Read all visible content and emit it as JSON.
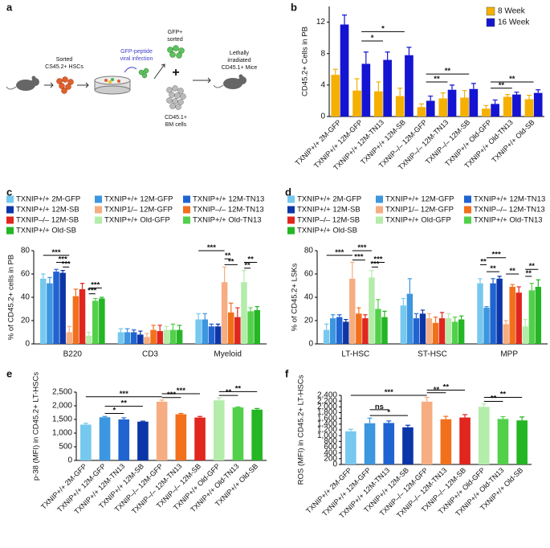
{
  "diagram": {
    "label": "a",
    "sorted": "Sorted",
    "hscs": "CS45.2+ HSCs",
    "peptide": "GFP-peptide",
    "infection": "viral infection",
    "gfp": "GFP+",
    "gfp_sorted": "sorted",
    "cd451": "CD45.1+",
    "bm": "BM cells",
    "lethally": "Lethally",
    "irradiated": "irradiated",
    "mice": "CD45.1+ Mice"
  },
  "chart_data": [
    {
      "panel": "b",
      "type": "bar",
      "ylabel": "CD45.2+ Cells in PB",
      "categories": [
        "TXNIP+/+ 2M-GFP",
        "TXNIP+/+ 12M-GFP",
        "TXNIP+/+ 12M-TN13",
        "TXNIP+/+ 12M-SB",
        "TXNIP–/– 12M-GFP",
        "TXNIP–/– 12M-TN13",
        "TXNIP–/– 12M-SB",
        "TXNIP+/+ Old-GFP",
        "TXNIP+/+ Old-TN13",
        "TXNIP+/+ Old-SB"
      ],
      "series": [
        {
          "name": "8 Week",
          "color": "#f5b000",
          "values": [
            5.3,
            3.3,
            3.2,
            2.6,
            1.2,
            2.3,
            2.4,
            1.0,
            2.5,
            2.2
          ],
          "errors": [
            0.7,
            1.5,
            1.2,
            1.0,
            0.4,
            0.7,
            0.9,
            0.4,
            0.3,
            0.5
          ]
        },
        {
          "name": "16 Week",
          "color": "#1414d2",
          "values": [
            11.7,
            6.7,
            7.2,
            7.8,
            2.0,
            3.4,
            3.5,
            1.6,
            2.8,
            3.0
          ],
          "errors": [
            1.2,
            1.5,
            1.0,
            1.0,
            0.6,
            0.6,
            0.7,
            0.5,
            0.3,
            0.4
          ]
        }
      ],
      "ylim": [
        0,
        14
      ],
      "yticks": [
        0,
        4,
        8,
        12
      ],
      "legend": "upper right",
      "annotations": [
        "*",
        "*",
        "**",
        "**",
        "**",
        "**"
      ]
    },
    {
      "panel": "c",
      "type": "bar",
      "ylabel": "% of CD45.2+ cells in PB",
      "categories": [
        "B220",
        "CD3",
        "Myeloid"
      ],
      "series": [
        {
          "name": "TXNIP+/+ 2M-GFP",
          "color": "#76c8ee",
          "values": [
            56,
            10,
            21
          ],
          "errors": [
            4,
            3,
            5
          ]
        },
        {
          "name": "TXNIP+/+ 12M-GFP",
          "color": "#3c96e0",
          "values": [
            52,
            10,
            21
          ],
          "errors": [
            5,
            3,
            5
          ]
        },
        {
          "name": "TXNIP+/+ 12M-TN13",
          "color": "#2064d2",
          "values": [
            62,
            10,
            15
          ],
          "errors": [
            2,
            2,
            2
          ]
        },
        {
          "name": "TXNIP+/+ 12M-SB",
          "color": "#0c36a8",
          "values": [
            61,
            8,
            15
          ],
          "errors": [
            2,
            3,
            2
          ]
        },
        {
          "name": "TXNIP1/– 12M-GFP",
          "color": "#f6ad82",
          "values": [
            10,
            6,
            53
          ],
          "errors": [
            5,
            3,
            13
          ]
        },
        {
          "name": "TXNIP–/– 12M-TN13",
          "color": "#f2701c",
          "values": [
            41,
            12,
            27
          ],
          "errors": [
            6,
            4,
            8
          ]
        },
        {
          "name": "TXNIP–/– 12M-SB",
          "color": "#e0261e",
          "values": [
            47,
            11,
            23
          ],
          "errors": [
            5,
            5,
            8
          ]
        },
        {
          "name": "TXNIP+/+ Old-GFP",
          "color": "#b4ecaa",
          "values": [
            7,
            12,
            53
          ],
          "errors": [
            3,
            3,
            10
          ]
        },
        {
          "name": "TXNIP+/+ Old-TN13",
          "color": "#52d04a",
          "values": [
            37,
            12,
            28
          ],
          "errors": [
            2,
            5,
            3
          ]
        },
        {
          "name": "TXNIP+/+ Old-SB",
          "color": "#24b624",
          "values": [
            39,
            12,
            29
          ],
          "errors": [
            1,
            4,
            3
          ]
        }
      ],
      "ylim": [
        0,
        80
      ],
      "yticks": [
        0,
        20,
        40,
        60,
        80
      ],
      "legend": "top",
      "annotations": [
        "***",
        "***",
        "***",
        "***",
        "***",
        "***",
        "**",
        "**",
        "**",
        "**"
      ]
    },
    {
      "panel": "d",
      "type": "bar",
      "ylabel": "% of CD45.2+ LSKs",
      "categories": [
        "LT-HSC",
        "ST-HSC",
        "MPP"
      ],
      "series": [
        {
          "name": "TXNIP+/+ 2M-GFP",
          "color": "#76c8ee",
          "values": [
            12,
            33,
            52
          ],
          "errors": [
            5,
            6,
            4
          ]
        },
        {
          "name": "TXNIP+/+ 12M-GFP",
          "color": "#3c96e0",
          "values": [
            22,
            43,
            31
          ],
          "errors": [
            3,
            13,
            1
          ]
        },
        {
          "name": "TXNIP+/+ 12M-TN13",
          "color": "#2064d2",
          "values": [
            23,
            22,
            52
          ],
          "errors": [
            2,
            4,
            4
          ]
        },
        {
          "name": "TXNIP+/+ 12M-SB",
          "color": "#0c36a8",
          "values": [
            19,
            26,
            56
          ],
          "errors": [
            2,
            3,
            2
          ]
        },
        {
          "name": "TXNIP1/– 12M-GFP",
          "color": "#f6ad82",
          "values": [
            56,
            22,
            17
          ],
          "errors": [
            14,
            4,
            3
          ]
        },
        {
          "name": "TXNIP–/– 12M-TN13",
          "color": "#f2701c",
          "values": [
            26,
            18,
            49
          ],
          "errors": [
            5,
            5,
            2
          ]
        },
        {
          "name": "TXNIP–/– 12M-SB",
          "color": "#e0261e",
          "values": [
            22,
            22,
            44
          ],
          "errors": [
            3,
            5,
            5
          ]
        },
        {
          "name": "TXNIP+/+ Old-GFP",
          "color": "#b4ecaa",
          "values": [
            57,
            22,
            15
          ],
          "errors": [
            6,
            4,
            6
          ]
        },
        {
          "name": "TXNIP+/+ Old-TN13",
          "color": "#52d04a",
          "values": [
            30,
            19,
            46
          ],
          "errors": [
            8,
            4,
            6
          ]
        },
        {
          "name": "TXNIP+/+ Old-SB",
          "color": "#24b624",
          "values": [
            23,
            21,
            49
          ],
          "errors": [
            5,
            3,
            6
          ]
        }
      ],
      "ylim": [
        0,
        80
      ],
      "yticks": [
        0,
        20,
        40,
        60,
        80
      ],
      "legend": "top",
      "annotations": [
        "***",
        "***",
        "***",
        "***",
        "***",
        "**",
        "**",
        "***",
        "**",
        "**",
        "**"
      ]
    },
    {
      "panel": "e",
      "type": "bar",
      "ylabel": "p-38 (MFI) in CD45.2+ LT-HSCs",
      "categories": [
        "TXNIP+/+ 2M-GFP",
        "TXNIP+/+ 12M-GFP",
        "TXNIP+/+ 12M-TN13",
        "TXNIP+/+ 12M-SB",
        "TXNIP–/– 12M-GFP",
        "TXNIP–/– 12M-TN13",
        "TXNIP–/– 12M-SB",
        "TXNIP+/+ Old-GFP",
        "TXNIP+/+ Old-TN13",
        "TXNIP+/+ Old-SB"
      ],
      "values": [
        1310,
        1580,
        1500,
        1420,
        2150,
        1690,
        1570,
        2200,
        1940,
        1860
      ],
      "errors": [
        50,
        30,
        60,
        20,
        60,
        30,
        40,
        90,
        20,
        40
      ],
      "colors": [
        "#76c8ee",
        "#3c96e0",
        "#2064d2",
        "#0c36a8",
        "#f6ad82",
        "#f2701c",
        "#e0261e",
        "#b4ecaa",
        "#52d04a",
        "#24b624"
      ],
      "ylim": [
        0,
        2500
      ],
      "yticks": [
        0,
        500,
        {
          "value": 1000,
          "label": "1,000"
        },
        {
          "value": 1500,
          "label": "1,500"
        },
        {
          "value": 2000,
          "label": "2,000"
        },
        {
          "value": 2500,
          "label": "2,500"
        }
      ],
      "annotations": [
        "***",
        "*",
        "**",
        "***",
        "***",
        "**",
        "**"
      ]
    },
    {
      "panel": "f",
      "type": "bar",
      "ylabel": "ROS (MFI) in CD45.2+ LT-HSCs",
      "categories": [
        "TXNIP+/+ 2M-GFP",
        "TXNIP+/+ 12M-GFP",
        "TXNIP+/+ 12M-TN13",
        "TXNIP+/+ 12M-SB",
        "TXNIP–/– 12M-GFP",
        "TXNIP–/– 12M-TN13",
        "TXNIP–/– 12M-SB",
        "TXNIP+/+ Old-GFP",
        "TXNIP+/+ Old-TN13",
        "TXNIP+/+ Old-SB"
      ],
      "values": [
        1150,
        1430,
        1440,
        1290,
        2180,
        1570,
        1630,
        2000,
        1580,
        1530
      ],
      "errors": [
        70,
        180,
        70,
        70,
        150,
        100,
        100,
        100,
        80,
        120
      ],
      "colors": [
        "#76c8ee",
        "#3c96e0",
        "#2064d2",
        "#0c36a8",
        "#f6ad82",
        "#f2701c",
        "#e0261e",
        "#b4ecaa",
        "#52d04a",
        "#24b624"
      ],
      "ylim": [
        0,
        2400
      ],
      "yticks": [
        0,
        200,
        400,
        600,
        800,
        {
          "value": 1000,
          "label": "1,000"
        },
        {
          "value": 1200,
          "label": "1,200"
        },
        {
          "value": 1400,
          "label": "1,400"
        },
        {
          "value": 1600,
          "label": "1,600"
        },
        {
          "value": 1800,
          "label": "1,800"
        },
        {
          "value": 2000,
          "label": "2,000"
        },
        {
          "value": 2200,
          "label": "2,200"
        },
        {
          "value": 2400,
          "label": "2,400"
        }
      ],
      "annotations": [
        "ns",
        "*",
        "***",
        "**",
        "**",
        "**",
        "**"
      ]
    }
  ]
}
